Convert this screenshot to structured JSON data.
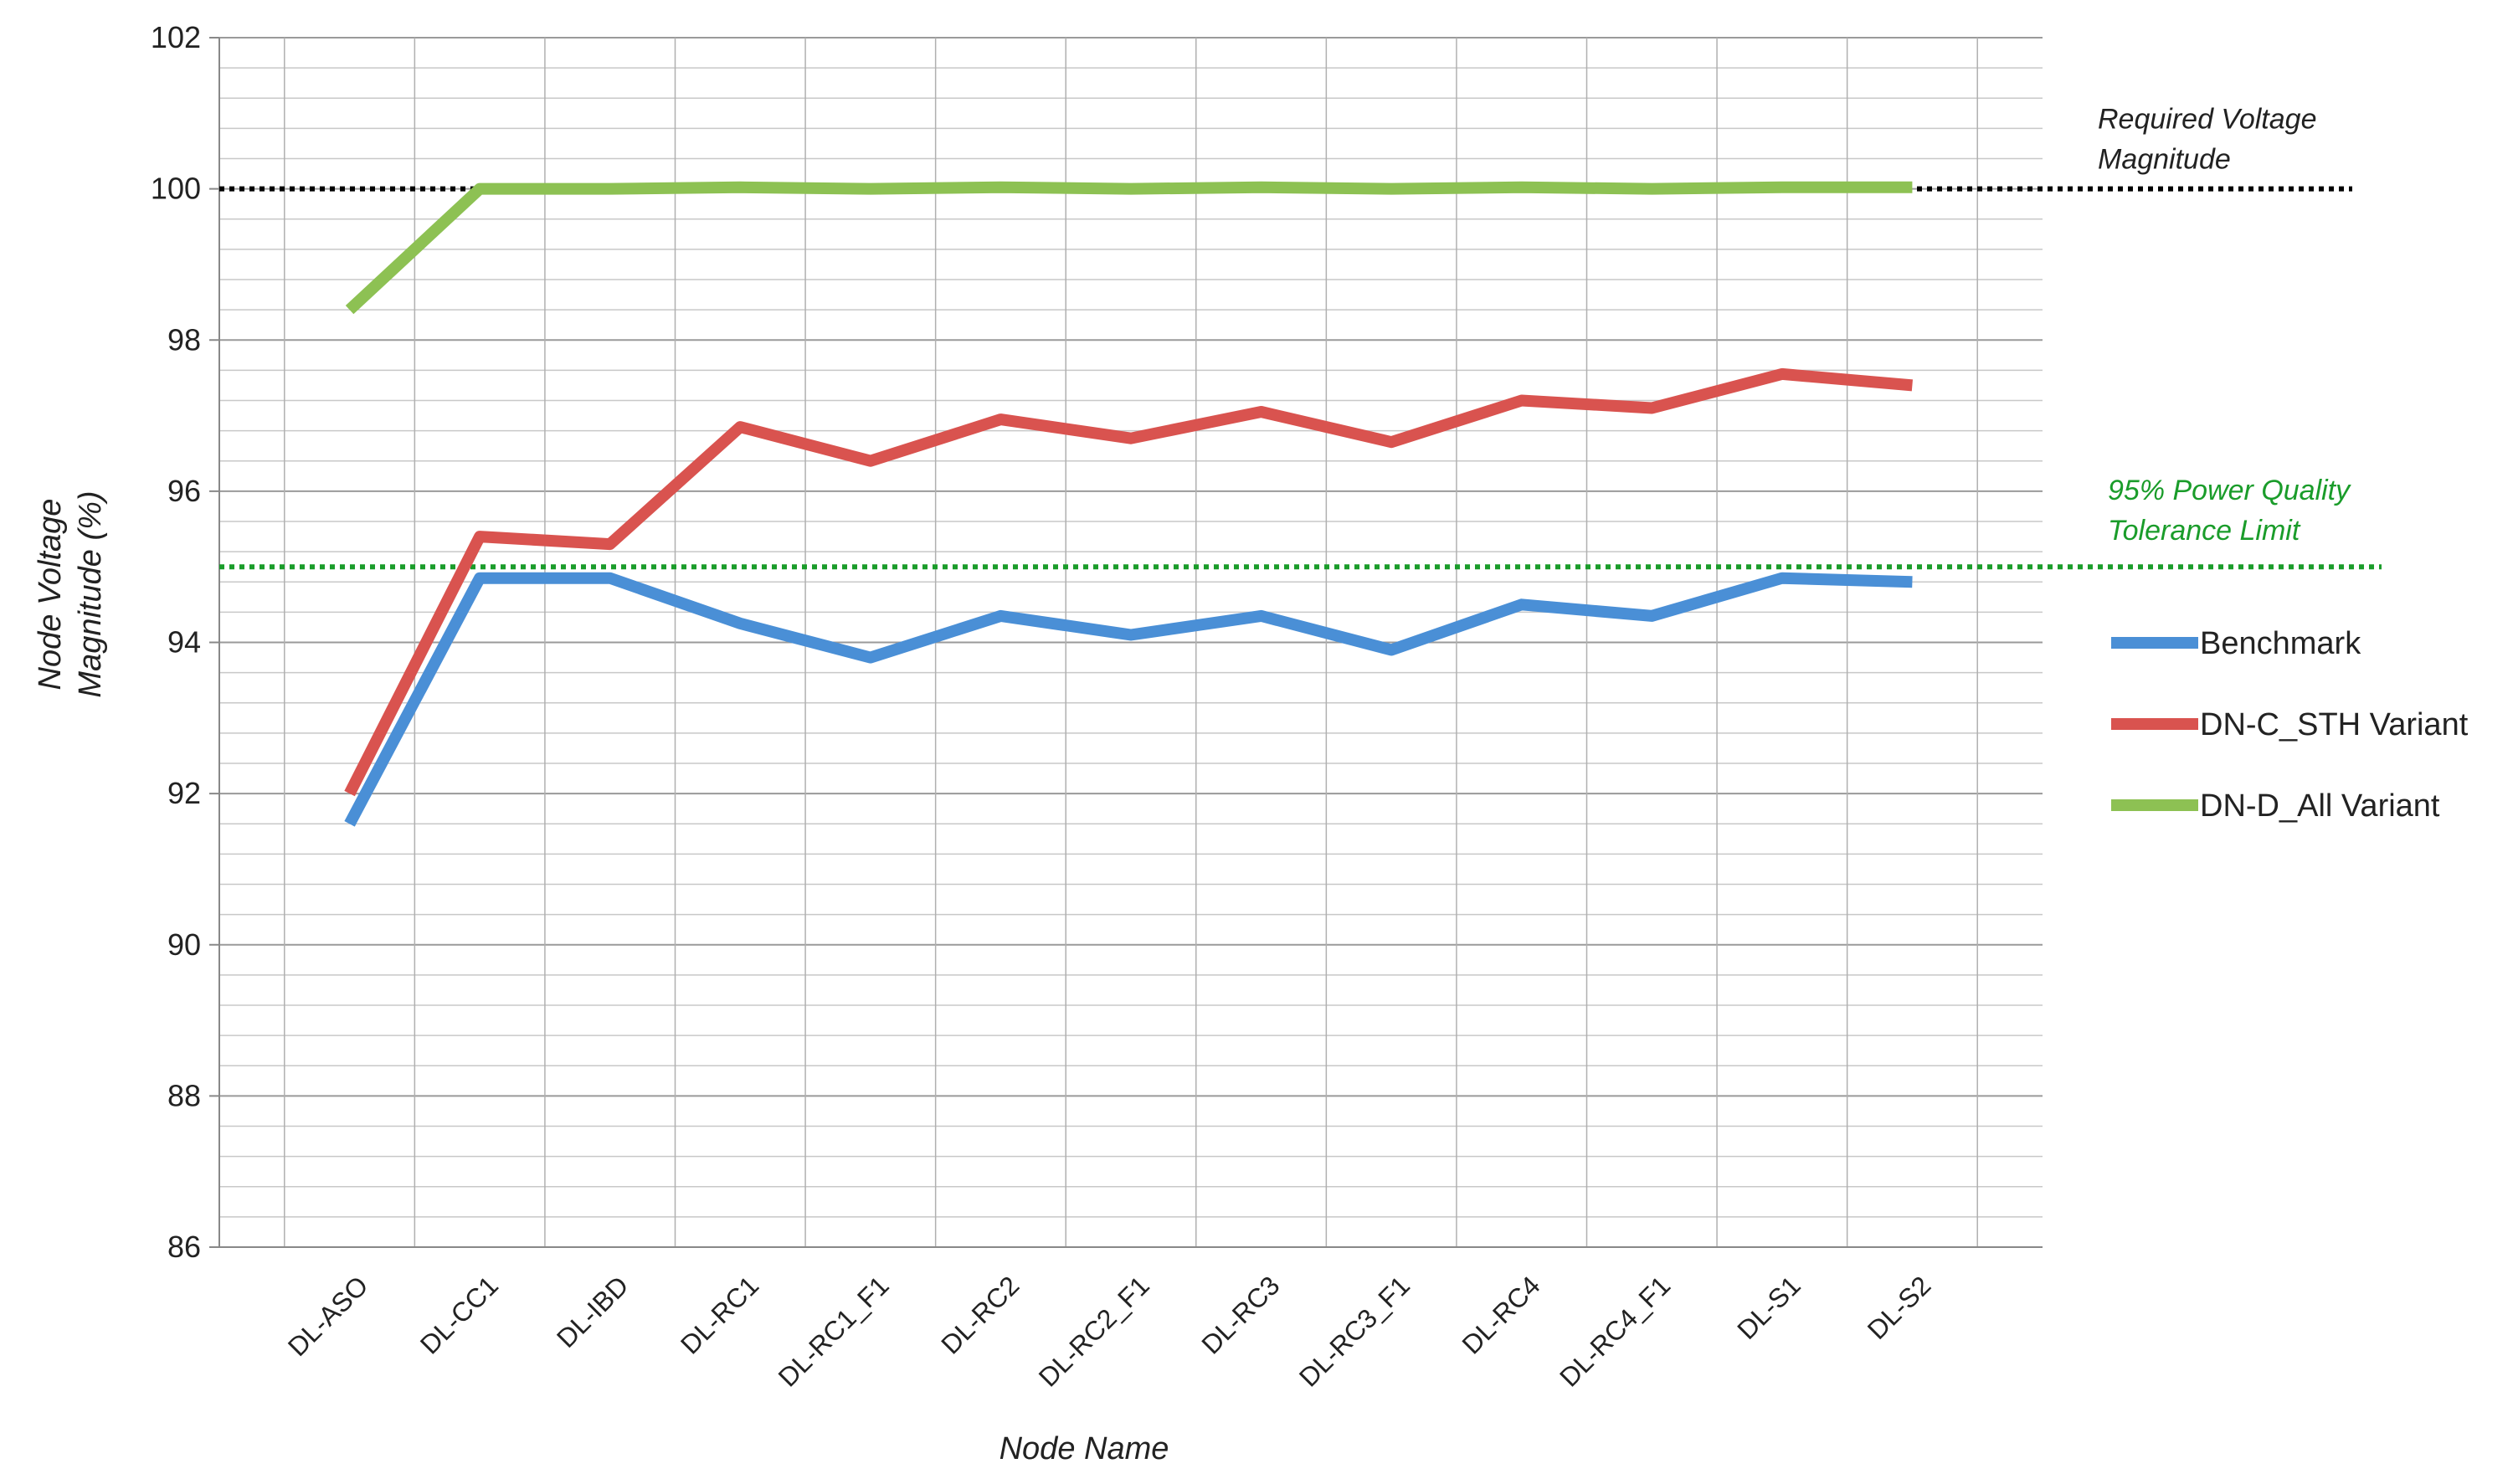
{
  "chart_data": {
    "type": "line",
    "xlabel": "Node Name",
    "ylabel_lines": [
      "Node Voltage",
      "Magnitude (%)"
    ],
    "categories": [
      "DL-ASO",
      "DL-CC1",
      "DL-IBD",
      "DL-RC1",
      "DL-RC1_F1",
      "DL-RC2",
      "DL-RC2_F1",
      "DL-RC3",
      "DL-RC3_F1",
      "DL-RC4",
      "DL-RC4_F1",
      "DL-S1",
      "DL-S2"
    ],
    "ylim": [
      86,
      102
    ],
    "yticks": [
      86,
      88,
      90,
      92,
      94,
      96,
      98,
      100,
      102
    ],
    "grid": true,
    "legend_position": "right",
    "series": [
      {
        "name": "Benchmark",
        "color": "#4a8fd6",
        "values": [
          91.6,
          94.85,
          94.85,
          94.25,
          93.8,
          94.35,
          94.1,
          94.35,
          93.9,
          94.5,
          94.35,
          94.85,
          94.8
        ]
      },
      {
        "name": "DN-C_STH Variant",
        "color": "#d9534f",
        "values": [
          92.0,
          95.4,
          95.3,
          96.85,
          96.4,
          96.95,
          96.7,
          97.05,
          96.65,
          97.2,
          97.1,
          97.55,
          97.4
        ]
      },
      {
        "name": "DN-D_All Variant",
        "color": "#8dc153",
        "values": [
          98.4,
          100.0,
          100.0,
          100.02,
          100.0,
          100.02,
          100.0,
          100.02,
          100.0,
          100.02,
          100.0,
          100.02,
          100.02
        ]
      }
    ],
    "reference_lines": [
      {
        "value": 100,
        "color": "#000000",
        "label_lines": [
          "Required Voltage",
          "Magnitude"
        ]
      },
      {
        "value": 95,
        "color": "#1a9c2a",
        "label_lines": [
          "95% Power Quality",
          "Tolerance Limit"
        ]
      }
    ]
  }
}
